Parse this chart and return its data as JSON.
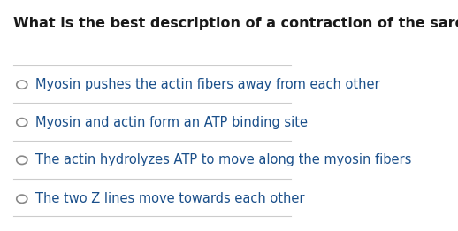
{
  "title": "What is the best description of a contraction of the sarcomere",
  "title_fontsize": 11.5,
  "title_color": "#1a1a1a",
  "title_bold": true,
  "options": [
    "Myosin pushes the actin fibers away from each other",
    "Myosin and actin form an ATP binding site",
    "The actin hydrolyzes ATP to move along the myosin fibers",
    "The two Z lines move towards each other"
  ],
  "option_fontsize": 10.5,
  "option_color": "#1a4f8a",
  "circle_color": "#888888",
  "line_color": "#cccccc",
  "background_color": "#ffffff"
}
